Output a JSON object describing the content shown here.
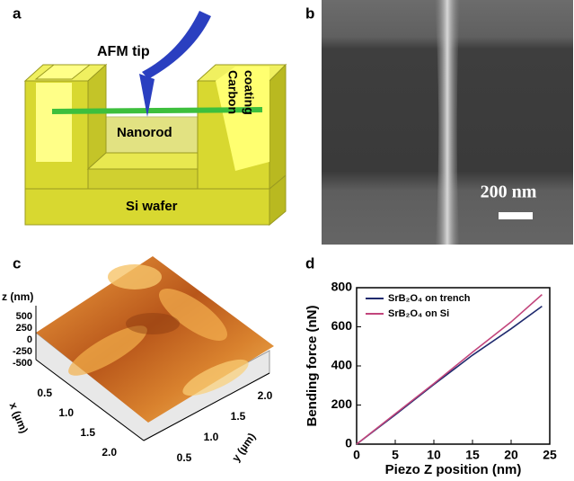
{
  "figure": {
    "panel_labels": [
      "a",
      "b",
      "c",
      "d"
    ],
    "a": {
      "afm_tip": "AFM tip",
      "nanorod": "Nanorod",
      "carbon_coating": [
        "Carbon",
        "coating"
      ],
      "si_wafer": "Si wafer"
    },
    "b": {
      "scale_bar": "200 nm"
    },
    "c": {
      "z_label": "z (nm)",
      "z_ticks": [
        "500",
        "250",
        "0",
        "-250",
        "-500"
      ],
      "x_label": "x (µm)",
      "x_ticks": [
        "0.5",
        "1.0",
        "1.5",
        "2.0"
      ],
      "y_label": "y (µm)",
      "y_ticks": [
        "0.5",
        "1.0",
        "1.5",
        "2.0"
      ]
    }
  },
  "chart_data": {
    "type": "line",
    "x_label": "Piezo Z position (nm)",
    "y_label": "Bending force (nN)",
    "x": [
      0,
      5,
      10,
      15,
      20,
      24
    ],
    "series": [
      {
        "name": "SrB₂O₄ on trench",
        "color": "#1f2a6e",
        "values": [
          0,
          150,
          305,
          455,
          590,
          705
        ]
      },
      {
        "name": "SrB₂O₄ on Si",
        "color": "#c2457c",
        "values": [
          0,
          155,
          310,
          470,
          625,
          765
        ]
      }
    ],
    "xlim": [
      0,
      25
    ],
    "xticks": [
      0,
      5,
      10,
      15,
      20,
      25
    ],
    "ylim": [
      0,
      800
    ],
    "yticks": [
      0,
      200,
      400,
      600,
      800
    ],
    "legend": "upper left"
  }
}
